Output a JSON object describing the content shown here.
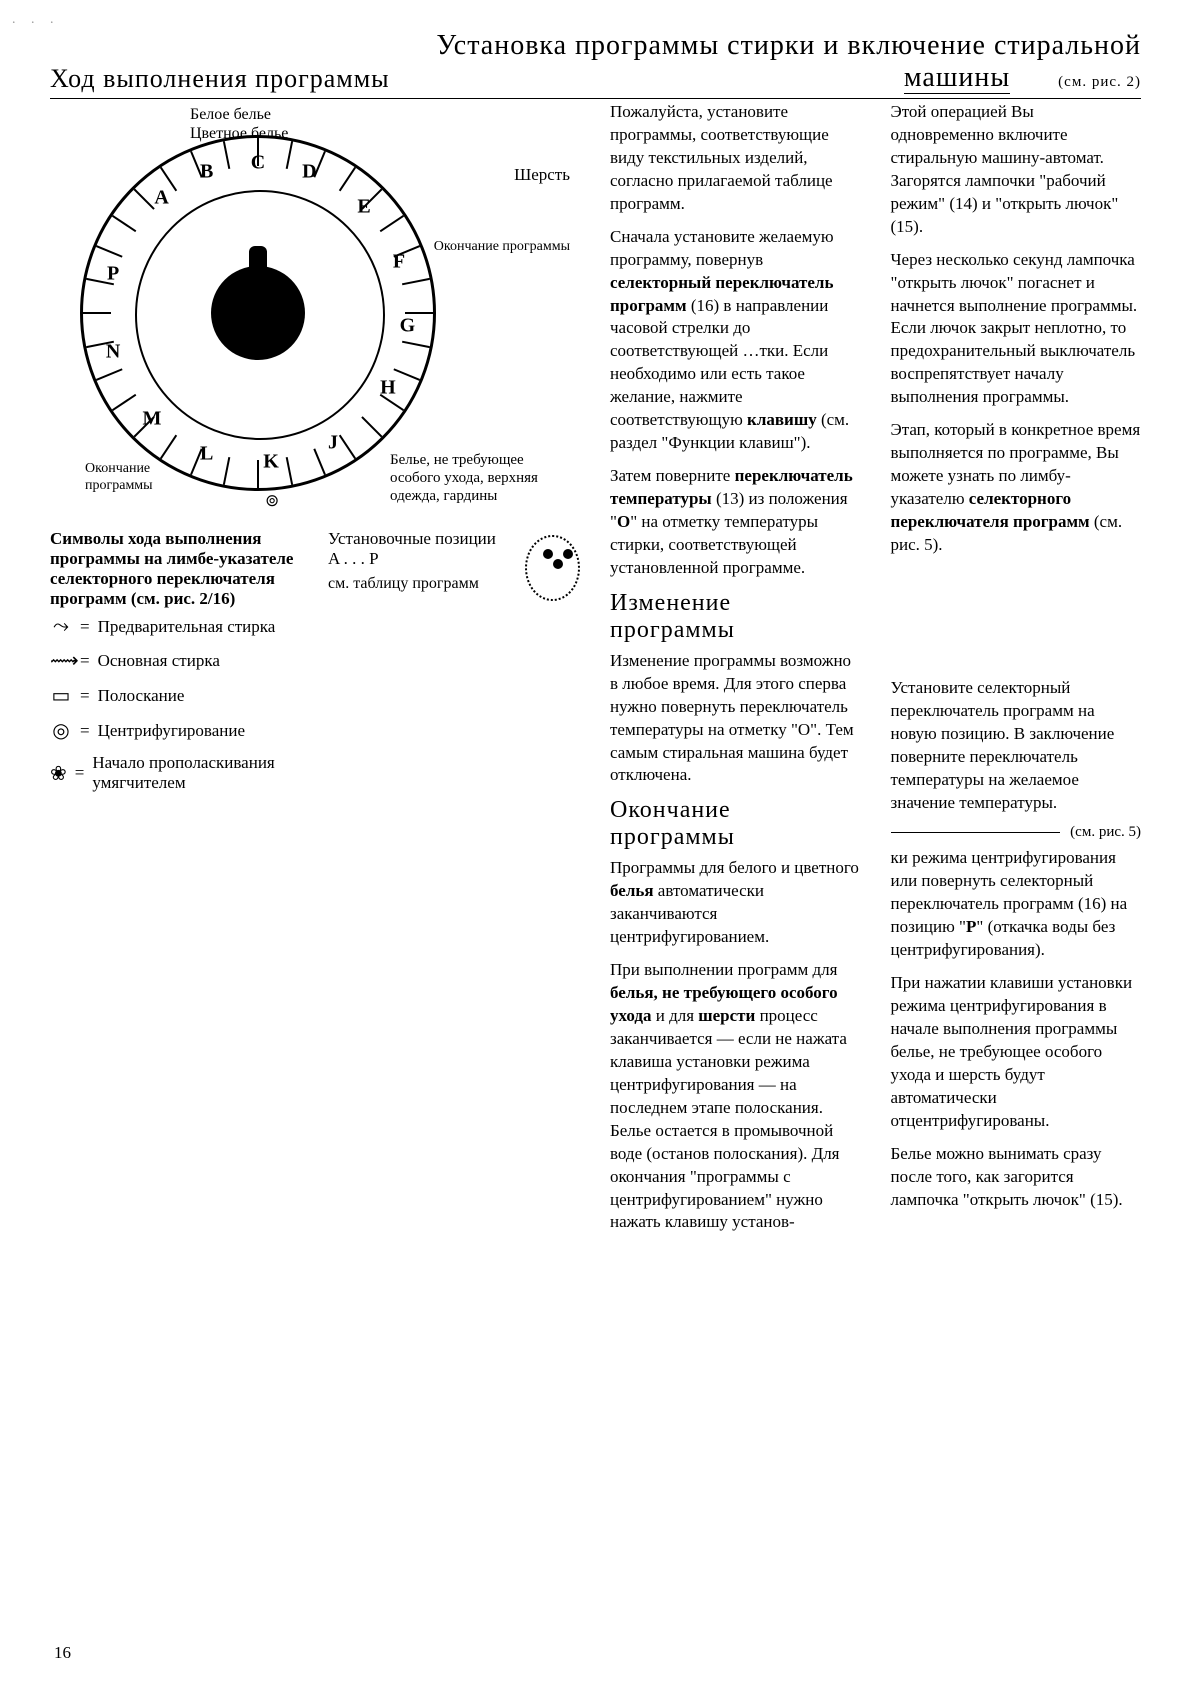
{
  "title": {
    "left": "Ход выполнения программы",
    "right": "Установка программы стирки и включение  стиральной",
    "right2": "машины",
    "subline": "(см. рис. 2)"
  },
  "dial": {
    "top_legend1": "Белое белье",
    "top_legend2": "Цветное белье",
    "right_legend": "Шерсть",
    "rb_legend": "Окончание\nпрограммы",
    "lb_legend1": "Окончание",
    "lb_legend2": "программы",
    "bottom_legend": "Белье, не требующее\nособого ухода,\nверхняя одежда,\nгардины",
    "center_symbol": "⊚",
    "positions": [
      "A",
      "B",
      "C",
      "D",
      "E",
      "F",
      "G",
      "H",
      "J",
      "K",
      "L",
      "M",
      "N",
      "P"
    ]
  },
  "header2": {
    "title": "Символы хода выполнения программы на лимбе-указателе селекторного переключателя программ (см. рис. 2/16)",
    "legend": [
      {
        "glyph": "⤳",
        "text": "Предварительная стирка"
      },
      {
        "glyph": "⟿",
        "text": "Основная стирка"
      },
      {
        "glyph": "▭",
        "text": "Полоскание"
      },
      {
        "glyph": "◎",
        "text": "Центрифугирование"
      },
      {
        "glyph": "❀",
        "text": "Начало прополаскивания умягчителем"
      }
    ],
    "setpos_title": "Установочные позиции A . . . P",
    "setpos_sub": "см. таблицу программ"
  },
  "mid": {
    "p1": "Пожалуйста, установите программы, соответствующие виду текстильных изделий, согласно прилагаемой таблице программ.",
    "p2a": "Сначала установите желаемую программу, повернув ",
    "p2b": "селекторный переключатель программ",
    "p2c": " (16) в направлении часовой стрелки до соответствующей ",
    "p2d": "…тки. Если необходимо или есть такое желание, нажмите соответствующую ",
    "p2e": "клавишу",
    "p2f": " (см. раздел \"Функции клавиш\").",
    "p3a": "Затем поверните ",
    "p3b": "переключатель температуры",
    "p3c": " (13) из положения \"",
    "p3d": "O",
    "p3e": "\" на отметку температуры стирки, соответствующей установленной программе.",
    "h_change": "Изменение программы",
    "p4": "Изменение программы возможно в любое время. Для этого сперва нужно повернуть переключатель температуры на отметку \"O\". Тем самым стиральная машина будет отключена.",
    "h_end": "Окончание программы",
    "p5a": "Программы для белого и цветного ",
    "p5b": "белья",
    "p5c": " автоматически заканчиваются центрифугированием.",
    "p6a": "При выполнении программ для ",
    "p6b": "белья, не требующего особого ухода",
    "p6c": " и для ",
    "p6d": "шерсти",
    "p6e": " процесс заканчивается — если не нажата клавиша установки режима центрифугирования — на последнем этапе полоскания. Белье остается в промывочной воде (останов полоскания). Для окончания \"программы с центрифугированием\" нужно нажать клавишу установ-"
  },
  "far": {
    "p1": "Этой операцией Вы одновременно включите стиральную машину-автомат. Загорятся лампочки \"рабочий режим\" (14) и \"открыть лючок\" (15).",
    "p2": "Через несколько секунд лампочка \"открыть лючок\" погаснет и начнется выполнение программы. Если лючок закрыт неплотно, то предохранительный выключатель воспрепятствует началу выполнения программы.",
    "p3a": "Этап, который в конкретное время выполняется по программе, Вы можете узнать по лимбу-указателю ",
    "p3b": "селекторного переключателя программ",
    "p3c": " (см. рис. 5).",
    "p4": "Установите селекторный переключатель программ на новую позицию. В заключение поверните переключатель температуры на желаемое значение температуры.",
    "note_ref": "(см. рис. 5)",
    "p5a": "ки режима центрифугирования или повернуть селекторный переключатель программ (16) на позицию \"",
    "p5b": "P",
    "p5c": "\" (откачка воды без центрифугирования).",
    "p6": "При нажатии клавиши установки режима центрифугирования в начале выполнения программы белье, не требующее особого ухода и шерсть будут автоматически отцентрифугированы.",
    "p7": "Белье можно вынимать сразу после того, как загорится лампочка \"открыть лючок\" (15)."
  },
  "page_number": "16",
  "artifact": ". . ."
}
